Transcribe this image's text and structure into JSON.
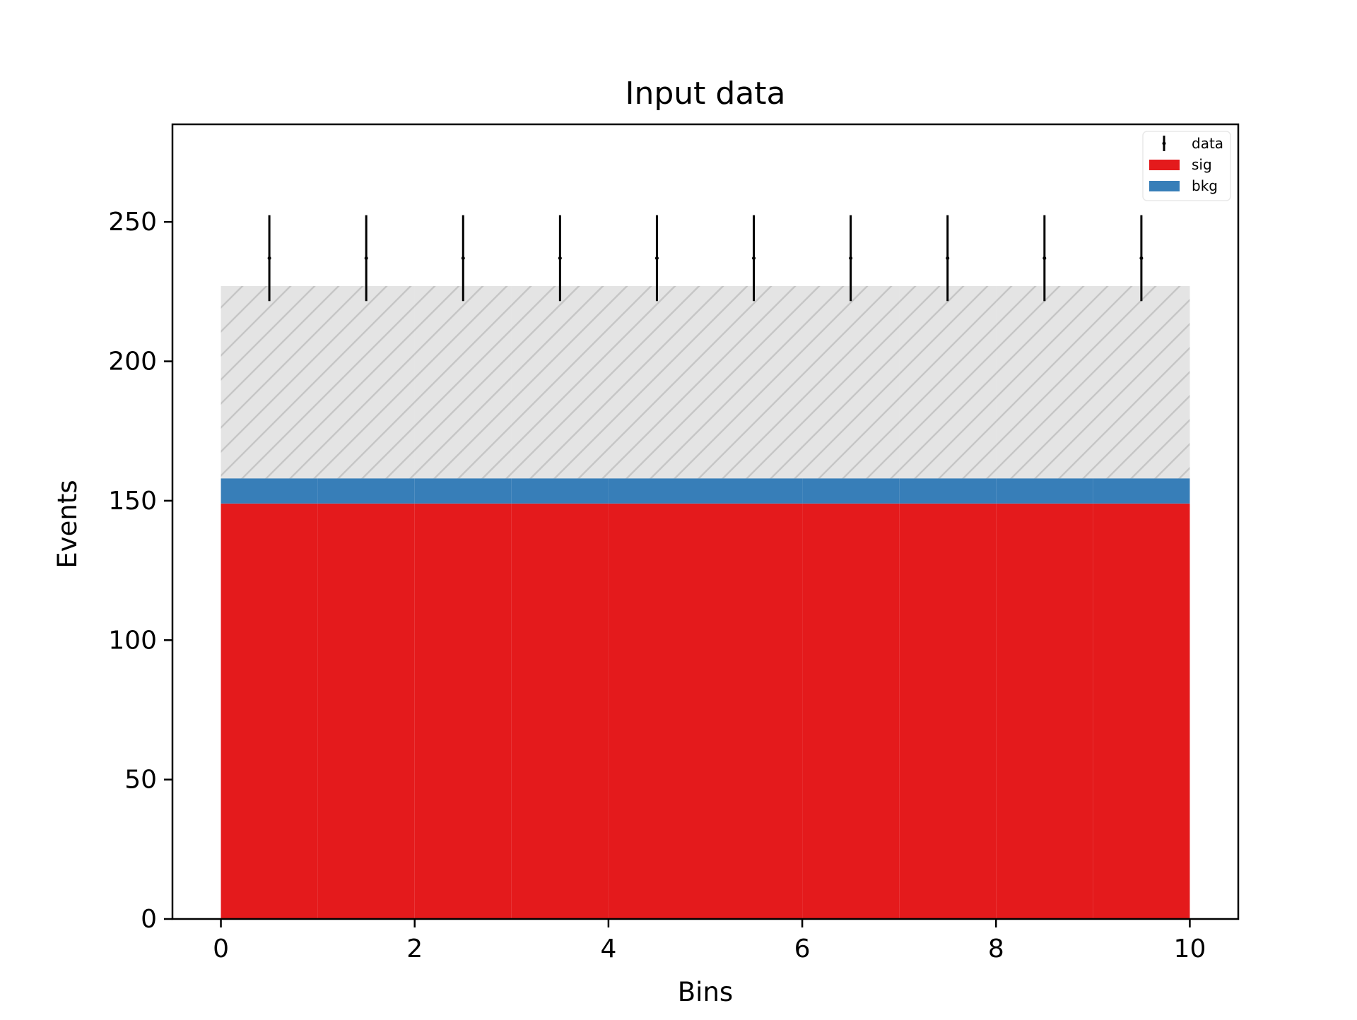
{
  "chart_data": {
    "type": "bar",
    "title": "Input data",
    "xlabel": "Bins",
    "ylabel": "Events",
    "xlim": [
      -0.5,
      10.5
    ],
    "ylim": [
      0,
      285
    ],
    "x_ticks": [
      0,
      2,
      4,
      6,
      8,
      10
    ],
    "y_ticks": [
      0,
      50,
      100,
      150,
      200,
      250
    ],
    "legend_position": "top-right",
    "grid": false,
    "bin_edges": [
      0,
      1,
      2,
      3,
      4,
      5,
      6,
      7,
      8,
      9,
      10
    ],
    "series": [
      {
        "name": "sig",
        "type": "stacked-bar",
        "color": "#e41a1c",
        "values": [
          149,
          149,
          149,
          149,
          149,
          149,
          149,
          149,
          149,
          149
        ]
      },
      {
        "name": "bkg",
        "type": "stacked-bar",
        "color": "#377eb8",
        "values": [
          9,
          9,
          9,
          9,
          9,
          9,
          9,
          9,
          9,
          9
        ]
      },
      {
        "name": "data",
        "type": "errorbar",
        "color": "#000000",
        "x": [
          0.5,
          1.5,
          2.5,
          3.5,
          4.5,
          5.5,
          6.5,
          7.5,
          8.5,
          9.5
        ],
        "values": [
          237,
          237,
          237,
          237,
          237,
          237,
          237,
          237,
          237,
          237
        ],
        "errors": [
          15.4,
          15.4,
          15.4,
          15.4,
          15.4,
          15.4,
          15.4,
          15.4,
          15.4,
          15.4
        ]
      }
    ],
    "uncertainty_band": {
      "hatch": "/",
      "color": "#bbbbbb",
      "lower": [
        158,
        158,
        158,
        158,
        158,
        158,
        158,
        158,
        158,
        158
      ],
      "upper": [
        227,
        227,
        227,
        227,
        227,
        227,
        227,
        227,
        227,
        227
      ]
    }
  }
}
